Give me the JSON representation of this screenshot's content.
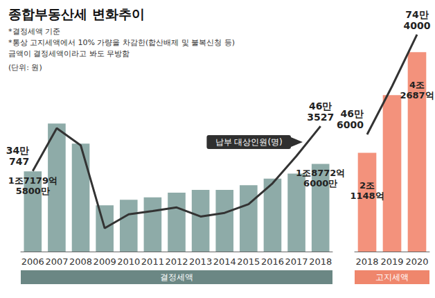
{
  "chart_data": [
    {
      "type": "bar",
      "title": "종합부동산세 변화추이",
      "annotations": [
        "*결정세액 기준",
        "*통상 고지세액에서 10% 가량을 차감한(합산배제 및 불복신청 등)",
        "금액이 결정세액이라고 봐도 무방함",
        "(단위: 원)"
      ],
      "categories": [
        "2006",
        "2007",
        "2008",
        "2009",
        "2010",
        "2011",
        "2012",
        "2013",
        "2014",
        "2015",
        "2016",
        "2017",
        "2018"
      ],
      "series": [
        {
          "name": "결정세액",
          "type": "bar",
          "color": "#8eaba8",
          "values": [
            1717958000000,
            2740000000000,
            2310000000000,
            990000000000,
            1110000000000,
            1160000000000,
            1260000000000,
            1320000000000,
            1320000000000,
            1420000000000,
            1560000000000,
            1670000000000,
            1877260000000
          ],
          "value_labels": [
            "1조7179억 5800만",
            null,
            null,
            null,
            null,
            null,
            null,
            null,
            null,
            null,
            null,
            null,
            "1조8772억 6000만"
          ]
        },
        {
          "name": "납부 대상인원(명)",
          "type": "line",
          "color": "#333333",
          "axis": "y2",
          "values": [
            340747,
            458000,
            411000,
            184000,
            222000,
            231000,
            241000,
            216000,
            226000,
            250000,
            307000,
            382000,
            463527
          ],
          "value_labels": [
            "34만 747",
            null,
            null,
            null,
            null,
            null,
            null,
            null,
            null,
            null,
            null,
            null,
            "46만 3527"
          ]
        }
      ],
      "ylim": [
        0,
        5000000000000
      ],
      "y2lim": [
        120000,
        760000
      ],
      "tick_labels": "x",
      "grid": false,
      "data_labels": true
    },
    {
      "type": "bar",
      "categories": [
        "2018",
        "2019",
        "2020"
      ],
      "series": [
        {
          "name": "고지세액",
          "type": "bar",
          "color": "#f3927c",
          "values": [
            2114800000000,
            3350000000000,
            4268700000000
          ],
          "value_labels": [
            "2조 1148억",
            null,
            "4조 2687억"
          ]
        },
        {
          "type": "line",
          "color": "#333333",
          "axis": "y2",
          "values": [
            466000,
            600000,
            744000
          ],
          "value_labels": [
            "46만 6000",
            null,
            "74만 4000"
          ]
        }
      ],
      "ylim": [
        0,
        5000000000000
      ],
      "y2lim": [
        140000,
        790000
      ],
      "tick_labels": "x",
      "grid": false,
      "data_labels": true
    }
  ]
}
